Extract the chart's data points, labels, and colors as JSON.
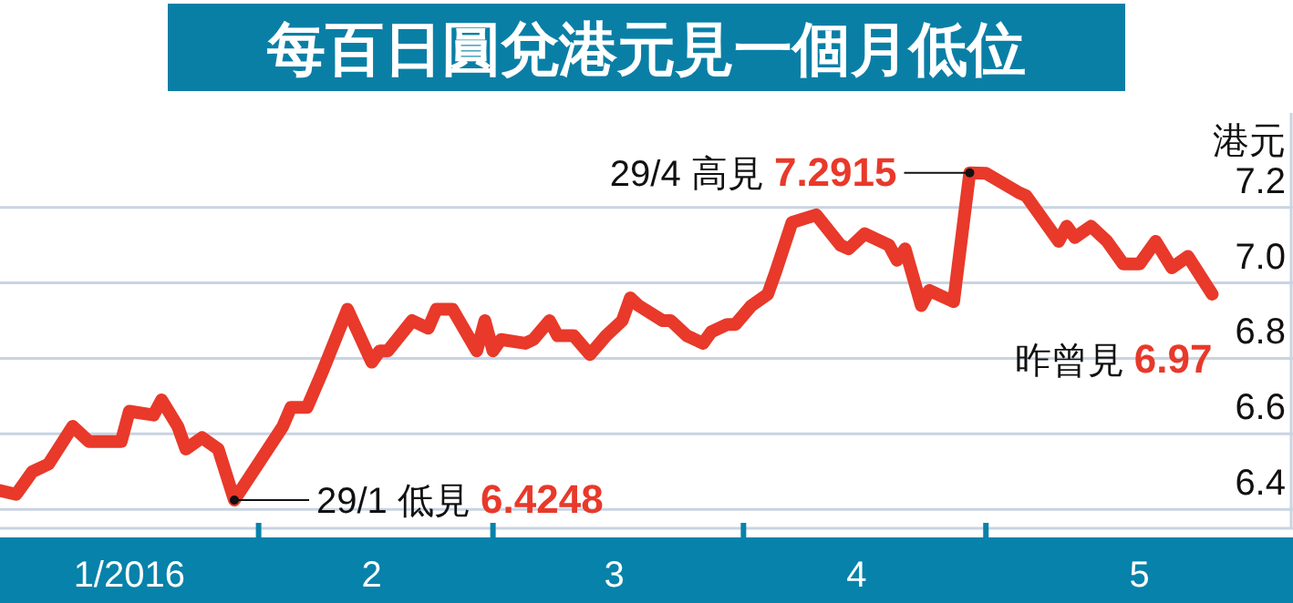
{
  "chart_data": {
    "type": "line",
    "title": "每百日圓兌港元見一個月低位",
    "ylabel": "港元",
    "x": [
      "2015-12-31",
      "2016-01-02",
      "2016-01-04",
      "2016-01-06",
      "2016-01-09",
      "2016-01-11",
      "2016-01-15",
      "2016-01-16",
      "2016-01-19",
      "2016-01-20",
      "2016-01-22",
      "2016-01-23",
      "2016-01-25",
      "2016-01-27",
      "2016-01-29",
      "2016-02-04",
      "2016-02-05",
      "2016-02-07",
      "2016-02-09",
      "2016-02-12",
      "2016-02-15",
      "2016-02-16",
      "2016-02-17",
      "2016-02-20",
      "2016-02-22",
      "2016-02-23",
      "2016-02-25",
      "2016-02-28",
      "2016-02-29",
      "2016-03-01",
      "2016-03-02",
      "2016-03-05",
      "2016-03-06",
      "2016-03-08",
      "2016-03-09",
      "2016-03-11",
      "2016-03-13",
      "2016-03-15",
      "2016-03-17",
      "2016-03-18",
      "2016-03-19",
      "2016-03-22",
      "2016-03-23",
      "2016-03-25",
      "2016-03-27",
      "2016-03-28",
      "2016-03-30",
      "2016-03-31",
      "2016-04-02",
      "2016-04-04",
      "2016-04-05",
      "2016-04-07",
      "2016-04-10",
      "2016-04-13",
      "2016-04-14",
      "2016-04-16",
      "2016-04-19",
      "2016-04-20",
      "2016-04-21",
      "2016-04-23",
      "2016-04-24",
      "2016-04-27",
      "2016-04-29",
      "2016-05-01",
      "2016-05-05",
      "2016-05-06",
      "2016-05-10",
      "2016-05-11",
      "2016-05-12",
      "2016-05-14",
      "2016-05-16",
      "2016-05-18",
      "2016-05-20",
      "2016-05-22",
      "2016-05-24",
      "2016-05-26",
      "2016-05-29"
    ],
    "series": [
      {
        "color": "#e8392a",
        "values": [
          6.45,
          6.44,
          6.5,
          6.52,
          6.62,
          6.58,
          6.58,
          6.66,
          6.65,
          6.69,
          6.62,
          6.56,
          6.59,
          6.56,
          6.4248,
          6.62,
          6.67,
          6.67,
          6.77,
          6.93,
          6.79,
          6.82,
          6.82,
          6.9,
          6.88,
          6.93,
          6.93,
          6.82,
          6.9,
          6.82,
          6.85,
          6.84,
          6.85,
          6.9,
          6.86,
          6.86,
          6.81,
          6.86,
          6.9,
          6.96,
          6.94,
          6.9,
          6.9,
          6.86,
          6.84,
          6.87,
          6.89,
          6.89,
          6.94,
          6.97,
          7.03,
          7.16,
          7.18,
          7.1,
          7.09,
          7.13,
          7.1,
          7.06,
          7.09,
          6.94,
          6.98,
          6.95,
          7.2915,
          7.29,
          7.24,
          7.23,
          7.11,
          7.15,
          7.12,
          7.15,
          7.11,
          7.05,
          7.05,
          7.11,
          7.04,
          7.07,
          6.97
        ]
      }
    ],
    "xlim": [
      "2015-12-31",
      "2016-06-08"
    ],
    "xticks": [
      {
        "value": "2016-01-16",
        "label": "1/2016"
      },
      {
        "value": "2016-02-01",
        "label": null
      },
      {
        "value": "2016-02-15",
        "label": "2"
      },
      {
        "value": "2016-03-01",
        "label": null
      },
      {
        "value": "2016-03-16",
        "label": "3"
      },
      {
        "value": "2016-04-01",
        "label": null
      },
      {
        "value": "2016-04-15",
        "label": "4"
      },
      {
        "value": "2016-05-01",
        "label": null
      },
      {
        "value": "2016-05-20",
        "label": "5"
      }
    ],
    "ylim": [
      6.35,
      7.45
    ],
    "yticks": [
      6.4,
      6.6,
      6.8,
      {
        "value": 7,
        "label": "7.0"
      },
      7.2
    ],
    "grid": "y",
    "annotations": [
      {
        "text": "29/1 低見 6.4248",
        "x": "2016-01-29",
        "y": 6.4248
      },
      {
        "text": "29/4 高見 7.2915",
        "x": "2016-04-29",
        "y": 7.2915
      },
      {
        "text": "昨曾見 6.97",
        "x": "2016-05-29",
        "y": 6.97
      }
    ]
  }
}
